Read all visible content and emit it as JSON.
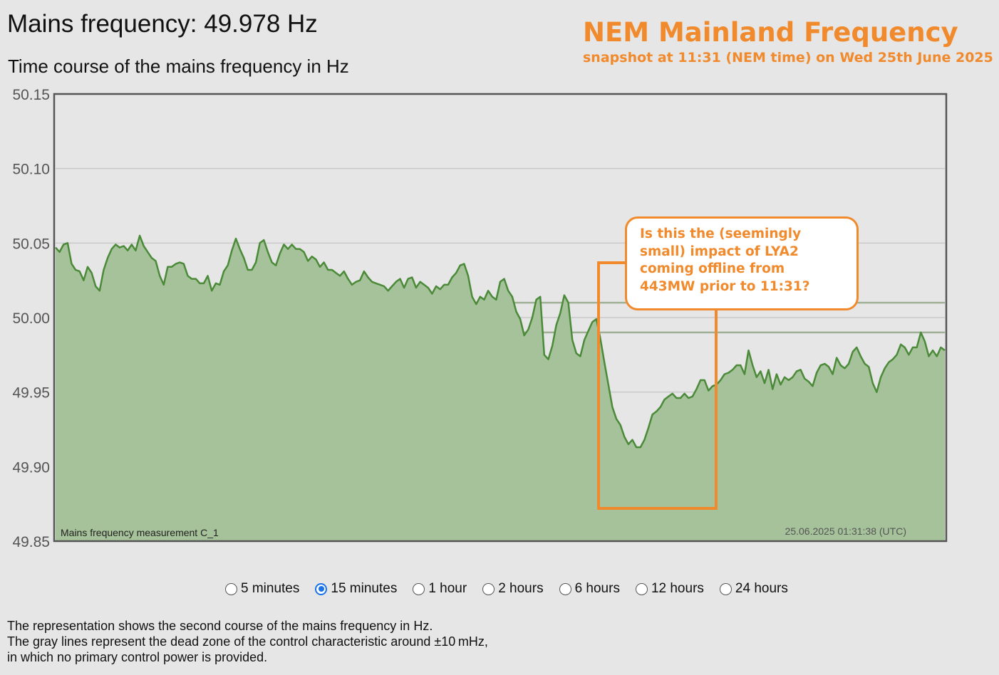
{
  "header": {
    "title": "Mains frequency: 49.978 Hz",
    "subtitle": "Time course of the mains frequency in Hz"
  },
  "brand": {
    "title": "NEM Mainland Frequency",
    "subtitle": "snapshot at 11:31 (NEM time) on Wed 25th June 2025"
  },
  "annotation": {
    "lines": [
      "Is this the (seemingly",
      "small) impact of LYA2",
      "coming offline from",
      "443MW prior to 11:31?"
    ]
  },
  "colors": {
    "accent": "#f08a2c",
    "line": "#4a8a38",
    "fill": "#a6c29a",
    "grid": "#c9c9c9"
  },
  "chart_data": {
    "type": "area",
    "title": "",
    "xlabel": "",
    "ylabel": "",
    "ylim": [
      49.85,
      50.15
    ],
    "yticks": [
      "50.15",
      "50.10",
      "50.05",
      "50.00",
      "49.95",
      "49.90",
      "49.85"
    ],
    "dead_zone": [
      49.99,
      50.01
    ],
    "series_label": "Mains frequency measurement C_1",
    "timestamp": "25.06.2025 01:31:38 (UTC)",
    "grid": true,
    "series": [
      {
        "values": [
          50.047,
          50.044,
          50.049,
          50.05,
          50.036,
          50.032,
          50.031,
          50.025,
          50.034,
          50.03,
          50.021,
          50.018,
          50.032,
          50.04,
          50.046,
          50.049,
          50.047,
          50.048,
          50.045,
          50.049,
          50.045,
          50.055,
          50.048,
          50.044,
          50.04,
          50.038,
          50.028,
          50.022,
          50.034,
          50.034,
          50.036,
          50.037,
          50.036,
          50.028,
          50.026,
          50.026,
          50.023,
          50.023,
          50.028,
          50.018,
          50.023,
          50.022,
          50.031,
          50.035,
          50.045,
          50.053,
          50.046,
          50.04,
          50.032,
          50.032,
          50.037,
          50.05,
          50.052,
          50.044,
          50.037,
          50.035,
          50.043,
          50.049,
          50.046,
          50.049,
          50.046,
          50.046,
          50.044,
          50.038,
          50.041,
          50.039,
          50.034,
          50.037,
          50.032,
          50.032,
          50.03,
          50.028,
          50.031,
          50.026,
          50.022,
          50.024,
          50.025,
          50.031,
          50.027,
          50.024,
          50.023,
          50.022,
          50.021,
          50.018,
          50.021,
          50.024,
          50.026,
          50.02,
          50.026,
          50.027,
          50.02,
          50.024,
          50.022,
          50.02,
          50.016,
          50.021,
          50.019,
          50.022,
          50.022,
          50.027,
          50.03,
          50.035,
          50.036,
          50.028,
          50.014,
          50.009,
          50.014,
          50.012,
          50.018,
          50.014,
          50.012,
          50.024,
          50.026,
          50.018,
          50.014,
          50.004,
          49.999,
          49.988,
          49.992,
          50.0,
          50.012,
          50.014,
          49.975,
          49.972,
          49.981,
          49.995,
          50.003,
          50.015,
          50.01,
          49.985,
          49.976,
          49.974,
          49.985,
          49.991,
          49.997,
          49.999,
          49.986,
          49.97,
          49.955,
          49.94,
          49.932,
          49.928,
          49.92,
          49.915,
          49.918,
          49.913,
          49.913,
          49.918,
          49.926,
          49.935,
          49.937,
          49.94,
          49.945,
          49.947,
          49.949,
          49.946,
          49.946,
          49.949,
          49.946,
          49.947,
          49.952,
          49.958,
          49.958,
          49.951,
          49.954,
          49.955,
          49.958,
          49.962,
          49.963,
          49.965,
          49.968,
          49.968,
          49.962,
          49.978,
          49.968,
          49.96,
          49.964,
          49.956,
          49.965,
          49.952,
          49.962,
          49.955,
          49.96,
          49.958,
          49.96,
          49.964,
          49.965,
          49.959,
          49.957,
          49.954,
          49.963,
          49.968,
          49.969,
          49.967,
          49.962,
          49.973,
          49.968,
          49.966,
          49.969,
          49.977,
          49.98,
          49.974,
          49.969,
          49.967,
          49.956,
          49.95,
          49.96,
          49.966,
          49.97,
          49.972,
          49.975,
          49.982,
          49.98,
          49.975,
          49.98,
          49.98,
          49.99,
          49.984,
          49.974,
          49.978,
          49.974,
          49.98,
          49.978
        ]
      }
    ]
  },
  "time_ranges": {
    "selected": "15 minutes",
    "options": [
      "5 minutes",
      "15 minutes",
      "1 hour",
      "2 hours",
      "6 hours",
      "12 hours",
      "24 hours"
    ]
  },
  "description": {
    "lines": [
      "The representation shows the second course of the mains frequency in Hz.",
      "The gray lines represent the dead zone of the control characteristic around ±10 mHz,",
      "in which no primary control power is provided."
    ]
  }
}
